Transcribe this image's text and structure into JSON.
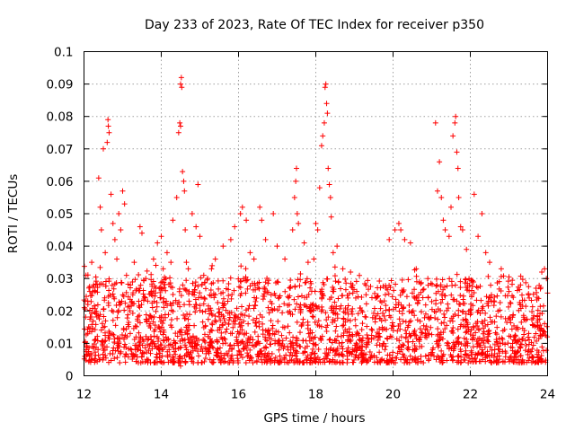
{
  "chart_data": {
    "type": "scatter",
    "title": "Day 233 of 2023, Rate Of TEC Index for receiver p350",
    "xlabel": "GPS time / hours",
    "ylabel": "ROTI / TECUs",
    "xlim": [
      12,
      24
    ],
    "ylim": [
      0,
      0.1
    ],
    "xticks": [
      12,
      14,
      16,
      18,
      20,
      22,
      24
    ],
    "xtick_labels": [
      "12",
      "14",
      "16",
      "18",
      "20",
      "22",
      "24"
    ],
    "yticks": [
      0,
      0.01,
      0.02,
      0.03,
      0.04,
      0.05,
      0.06,
      0.07,
      0.08,
      0.09,
      0.1
    ],
    "ytick_labels": [
      "0",
      "0.01",
      "0.02",
      "0.03",
      "0.04",
      "0.05",
      "0.06",
      "0.07",
      "0.08",
      "0.09",
      "0.1"
    ],
    "grid": true,
    "marker": "+",
    "color": "#ff0000",
    "series": [
      {
        "name": "ROTI",
        "points": [
          [
            12.05,
            0.031
          ],
          [
            12.1,
            0.022
          ],
          [
            12.15,
            0.026
          ],
          [
            12.2,
            0.035
          ],
          [
            12.25,
            0.028
          ],
          [
            12.38,
            0.061
          ],
          [
            12.42,
            0.052
          ],
          [
            12.45,
            0.045
          ],
          [
            12.5,
            0.07
          ],
          [
            12.55,
            0.038
          ],
          [
            12.6,
            0.072
          ],
          [
            12.62,
            0.079
          ],
          [
            12.63,
            0.077
          ],
          [
            12.65,
            0.075
          ],
          [
            12.7,
            0.056
          ],
          [
            12.75,
            0.047
          ],
          [
            12.8,
            0.042
          ],
          [
            12.85,
            0.036
          ],
          [
            12.9,
            0.05
          ],
          [
            12.95,
            0.045
          ],
          [
            13.0,
            0.057
          ],
          [
            13.05,
            0.053
          ],
          [
            13.1,
            0.031
          ],
          [
            13.2,
            0.028
          ],
          [
            13.3,
            0.035
          ],
          [
            13.45,
            0.046
          ],
          [
            13.5,
            0.044
          ],
          [
            13.6,
            0.03
          ],
          [
            13.8,
            0.036
          ],
          [
            13.9,
            0.041
          ],
          [
            14.0,
            0.043
          ],
          [
            14.05,
            0.033
          ],
          [
            14.15,
            0.038
          ],
          [
            14.25,
            0.035
          ],
          [
            14.3,
            0.048
          ],
          [
            14.4,
            0.055
          ],
          [
            14.45,
            0.075
          ],
          [
            14.48,
            0.078
          ],
          [
            14.5,
            0.077
          ],
          [
            14.5,
            0.09
          ],
          [
            14.52,
            0.092
          ],
          [
            14.53,
            0.089
          ],
          [
            14.55,
            0.063
          ],
          [
            14.58,
            0.06
          ],
          [
            14.6,
            0.057
          ],
          [
            14.62,
            0.045
          ],
          [
            14.65,
            0.035
          ],
          [
            14.7,
            0.033
          ],
          [
            14.8,
            0.05
          ],
          [
            14.9,
            0.046
          ],
          [
            14.95,
            0.059
          ],
          [
            15.0,
            0.043
          ],
          [
            15.1,
            0.031
          ],
          [
            15.3,
            0.033
          ],
          [
            15.4,
            0.036
          ],
          [
            15.6,
            0.04
          ],
          [
            15.8,
            0.042
          ],
          [
            15.9,
            0.046
          ],
          [
            16.05,
            0.05
          ],
          [
            16.1,
            0.052
          ],
          [
            16.2,
            0.048
          ],
          [
            16.3,
            0.038
          ],
          [
            16.4,
            0.036
          ],
          [
            16.55,
            0.052
          ],
          [
            16.6,
            0.048
          ],
          [
            16.7,
            0.042
          ],
          [
            16.9,
            0.05
          ],
          [
            17.0,
            0.04
          ],
          [
            17.2,
            0.036
          ],
          [
            17.4,
            0.045
          ],
          [
            17.45,
            0.055
          ],
          [
            17.48,
            0.06
          ],
          [
            17.5,
            0.064
          ],
          [
            17.52,
            0.05
          ],
          [
            17.55,
            0.047
          ],
          [
            17.7,
            0.041
          ],
          [
            17.8,
            0.035
          ],
          [
            17.95,
            0.036
          ],
          [
            18.0,
            0.047
          ],
          [
            18.05,
            0.045
          ],
          [
            18.1,
            0.058
          ],
          [
            18.15,
            0.071
          ],
          [
            18.18,
            0.074
          ],
          [
            18.22,
            0.078
          ],
          [
            18.24,
            0.089
          ],
          [
            18.26,
            0.09
          ],
          [
            18.28,
            0.084
          ],
          [
            18.3,
            0.081
          ],
          [
            18.32,
            0.064
          ],
          [
            18.35,
            0.059
          ],
          [
            18.38,
            0.055
          ],
          [
            18.4,
            0.049
          ],
          [
            18.45,
            0.038
          ],
          [
            18.55,
            0.04
          ],
          [
            18.7,
            0.033
          ],
          [
            18.9,
            0.032
          ],
          [
            19.3,
            0.025
          ],
          [
            19.8,
            0.025
          ],
          [
            19.9,
            0.042
          ],
          [
            20.05,
            0.045
          ],
          [
            20.15,
            0.047
          ],
          [
            20.2,
            0.045
          ],
          [
            20.3,
            0.042
          ],
          [
            20.45,
            0.041
          ],
          [
            20.6,
            0.033
          ],
          [
            20.9,
            0.03
          ],
          [
            21.1,
            0.078
          ],
          [
            21.15,
            0.057
          ],
          [
            21.2,
            0.066
          ],
          [
            21.25,
            0.055
          ],
          [
            21.3,
            0.048
          ],
          [
            21.35,
            0.045
          ],
          [
            21.45,
            0.043
          ],
          [
            21.5,
            0.052
          ],
          [
            21.55,
            0.074
          ],
          [
            21.6,
            0.078
          ],
          [
            21.62,
            0.08
          ],
          [
            21.65,
            0.069
          ],
          [
            21.68,
            0.064
          ],
          [
            21.7,
            0.055
          ],
          [
            21.75,
            0.046
          ],
          [
            21.8,
            0.045
          ],
          [
            21.9,
            0.039
          ],
          [
            22.1,
            0.056
          ],
          [
            22.2,
            0.043
          ],
          [
            22.3,
            0.05
          ],
          [
            22.4,
            0.038
          ],
          [
            22.5,
            0.035
          ],
          [
            22.8,
            0.033
          ],
          [
            23.0,
            0.026
          ],
          [
            23.3,
            0.028
          ],
          [
            23.5,
            0.025
          ],
          [
            23.7,
            0.027
          ],
          [
            23.85,
            0.032
          ],
          [
            23.92,
            0.033
          ],
          [
            23.97,
            0.03
          ],
          [
            22.55,
            0.004
          ],
          [
            22.7,
            0.006
          ],
          [
            14.5,
            0.003
          ],
          [
            18.0,
            0.005
          ]
        ],
        "dense_band": {
          "ymin": 0.004,
          "ymax": 0.03,
          "count": 2300,
          "note": "dense background cloud of points throughout the whole time range"
        }
      }
    ]
  }
}
